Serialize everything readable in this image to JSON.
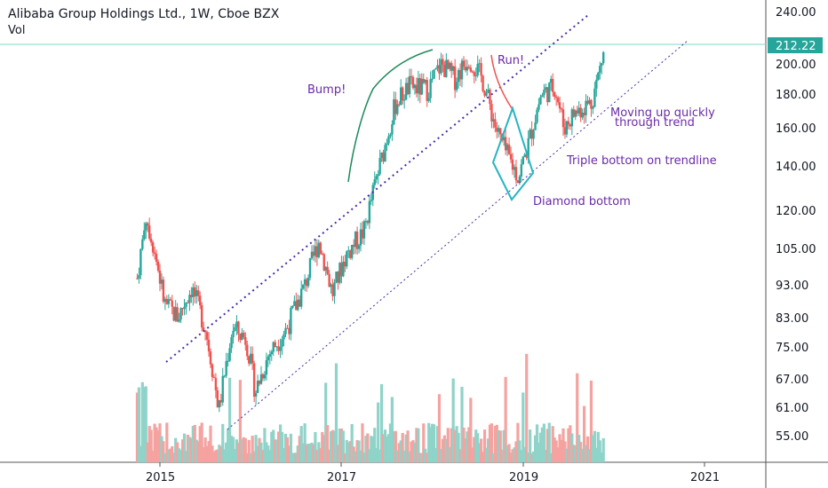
{
  "header": {
    "title": "Alibaba Group Holdings Ltd., 1W, Cboe BZX",
    "subtitle": "Vol"
  },
  "chart_data": {
    "type": "candlestick",
    "price_axis": {
      "scale": "log",
      "ticks": [
        "240.00",
        "212.22",
        "200.00",
        "180.00",
        "160.00",
        "140.00",
        "120.00",
        "105.00",
        "93.00",
        "83.00",
        "75.00",
        "67.00",
        "61.00",
        "55.00"
      ],
      "last_price": "212.22"
    },
    "time_axis": {
      "ticks": [
        "2015",
        "2017",
        "2019",
        "2021"
      ]
    },
    "colors": {
      "up": "#26a69a",
      "down": "#ef5350",
      "up_vol": "#8fd3c9",
      "down_vol": "#f4a3a0",
      "trend": "#4b2ca8",
      "diamond": "#26b5c0",
      "bump": "#1b8a5a",
      "last_line": "#80d4c9",
      "annotation": "#6a2aa8"
    },
    "annotations": [
      {
        "text": "Bump!"
      },
      {
        "text": "Run!"
      },
      {
        "text": "Moving up quickly"
      },
      {
        "text": "through trend"
      },
      {
        "text": "Triple bottom on trendline"
      },
      {
        "text": "Diamond bottom"
      }
    ],
    "price_path": [
      {
        "x": 2014.75,
        "y": 95
      },
      {
        "x": 2014.85,
        "y": 118
      },
      {
        "x": 2014.95,
        "y": 103
      },
      {
        "x": 2015.05,
        "y": 87
      },
      {
        "x": 2015.2,
        "y": 83
      },
      {
        "x": 2015.35,
        "y": 92
      },
      {
        "x": 2015.5,
        "y": 80
      },
      {
        "x": 2015.65,
        "y": 60
      },
      {
        "x": 2015.8,
        "y": 80
      },
      {
        "x": 2015.95,
        "y": 77
      },
      {
        "x": 2016.05,
        "y": 64
      },
      {
        "x": 2016.2,
        "y": 73
      },
      {
        "x": 2016.4,
        "y": 80
      },
      {
        "x": 2016.6,
        "y": 93
      },
      {
        "x": 2016.75,
        "y": 108
      },
      {
        "x": 2016.9,
        "y": 90
      },
      {
        "x": 2017.05,
        "y": 103
      },
      {
        "x": 2017.25,
        "y": 112
      },
      {
        "x": 2017.45,
        "y": 145
      },
      {
        "x": 2017.6,
        "y": 175
      },
      {
        "x": 2017.75,
        "y": 185
      },
      {
        "x": 2017.95,
        "y": 183
      },
      {
        "x": 2018.1,
        "y": 200
      },
      {
        "x": 2018.25,
        "y": 190
      },
      {
        "x": 2018.4,
        "y": 205
      },
      {
        "x": 2018.55,
        "y": 190
      },
      {
        "x": 2018.7,
        "y": 160
      },
      {
        "x": 2018.8,
        "y": 148
      },
      {
        "x": 2018.95,
        "y": 135
      },
      {
        "x": 2019.05,
        "y": 150
      },
      {
        "x": 2019.2,
        "y": 180
      },
      {
        "x": 2019.35,
        "y": 185
      },
      {
        "x": 2019.45,
        "y": 160
      },
      {
        "x": 2019.55,
        "y": 168
      },
      {
        "x": 2019.65,
        "y": 172
      },
      {
        "x": 2019.75,
        "y": 175
      },
      {
        "x": 2019.82,
        "y": 190
      },
      {
        "x": 2019.9,
        "y": 212
      }
    ]
  }
}
